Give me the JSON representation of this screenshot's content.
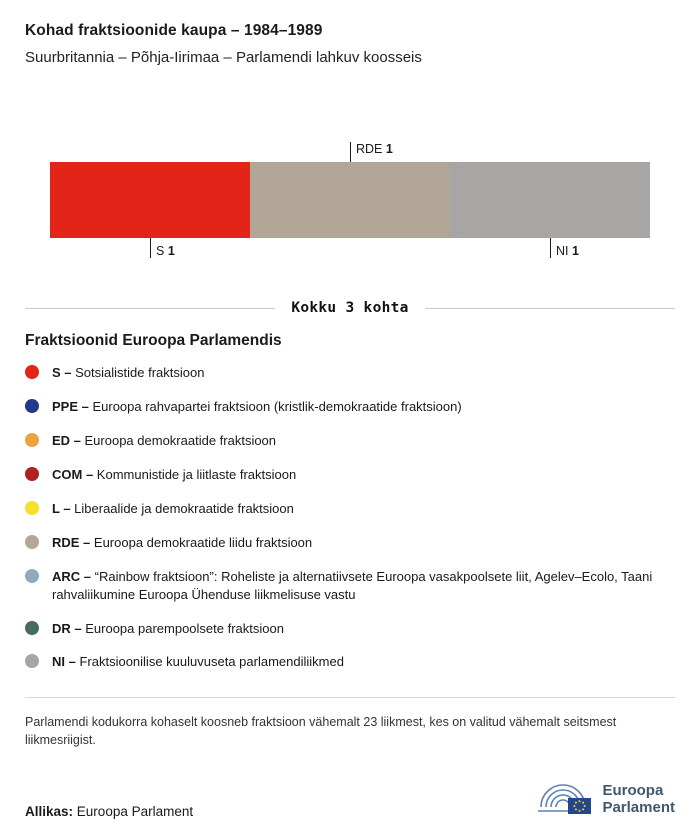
{
  "header": {
    "title": "Kohad fraktsioonide kaupa – 1984–1989",
    "subtitle": "Suurbritannia – Põhja-Iirimaa – Parlamendi lahkuv koosseis"
  },
  "chart_data": {
    "type": "bar",
    "variant": "stacked-horizontal-seats",
    "title": "Kohad fraktsioonide kaupa – 1984–1989",
    "total_seats": 3,
    "total_label": "Kokku 3 kohta",
    "segments": [
      {
        "group": "S",
        "seats": 1,
        "color": "#e32519",
        "label_position": "below"
      },
      {
        "group": "RDE",
        "seats": 1,
        "color": "#b2a797",
        "label_position": "above"
      },
      {
        "group": "NI",
        "seats": 1,
        "color": "#a7a6a4",
        "label_position": "below"
      }
    ]
  },
  "legend": {
    "title": "Fraktsioonid Euroopa Parlamendis",
    "items": [
      {
        "code": "S",
        "color": "#e32519",
        "description": "Sotsialistide fraktsioon"
      },
      {
        "code": "PPE",
        "color": "#24388c",
        "description": "Euroopa rahvapartei fraktsioon (kristlik-demokraatide fraktsioon)"
      },
      {
        "code": "ED",
        "color": "#eda33b",
        "description": "Euroopa demokraatide fraktsioon"
      },
      {
        "code": "COM",
        "color": "#b2201f",
        "description": "Kommunistide ja liitlaste fraktsioon"
      },
      {
        "code": "L",
        "color": "#f6e02a",
        "description": "Liberaalide ja demokraatide fraktsioon"
      },
      {
        "code": "RDE",
        "color": "#b2a797",
        "description": "Euroopa demokraatide liidu fraktsioon"
      },
      {
        "code": "ARC",
        "color": "#8cabc3",
        "description": "“Rainbow fraktsioon”: Roheliste ja alternatiivsete Euroopa vasakpoolsete liit, Agelev–Ecolo, Taani rahvaliikumine Euroopa Ühenduse liikmelisuse vastu"
      },
      {
        "code": "DR",
        "color": "#476b5d",
        "description": "Euroopa parempoolsete fraktsioon"
      },
      {
        "code": "NI",
        "color": "#a7a6a4",
        "description": "Fraktsioonilise kuuluvuseta parlamendiliikmed"
      }
    ]
  },
  "footnote": "Parlamendi kodukorra kohaselt koosneb fraktsioon vähemalt 23 liikmest, kes on valitud vähemalt seitsmest liikmesriigist.",
  "source": {
    "label": "Allikas:",
    "text": "Euroopa Parlament"
  },
  "logo": {
    "line1": "Euroopa",
    "line2": "Parlament"
  }
}
